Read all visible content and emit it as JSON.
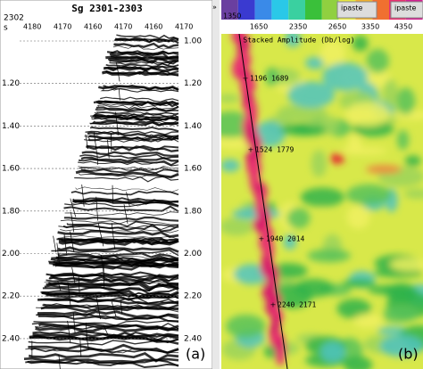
{
  "panel_a": {
    "title": "Sg  2301-2303",
    "trace_label": "2302",
    "axis_symbol": "s",
    "header_values": [
      "4180",
      "4170",
      "4160",
      "4170",
      "4160",
      "4170"
    ],
    "y_ticks_left": [
      "1.20",
      "1.40",
      "1.60",
      "1.80",
      "2.00",
      "2.20",
      "2.40"
    ],
    "y_ticks_right": [
      "1.00",
      "1.20",
      "1.40",
      "1.60",
      "1.80",
      "2.00",
      "2.20",
      "2.40"
    ],
    "label": "(a)"
  },
  "panel_b": {
    "colorbar_start": "1350",
    "buttons": [
      "ipaste",
      "ipaste"
    ],
    "header_values": [
      "1650",
      "2350",
      "2650",
      "3350",
      "4350"
    ],
    "axis_title": "Stacked Amplitude (Db/log)",
    "picks": [
      "1196 1689",
      "1524 1779",
      "1940 2014",
      "2240 2171"
    ],
    "label": "(b)"
  }
}
